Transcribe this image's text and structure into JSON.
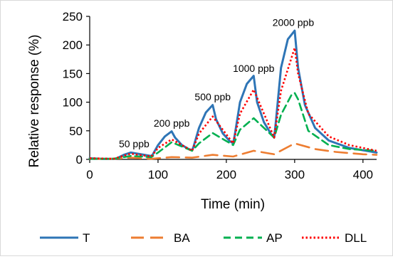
{
  "chart_data": {
    "type": "line",
    "title": "",
    "xlabel": "Time (min)",
    "ylabel": "Relative response (%)",
    "xlim": [
      0,
      420
    ],
    "ylim": [
      0,
      250
    ],
    "xticks": [
      0,
      100,
      200,
      300,
      400
    ],
    "yticks": [
      0,
      50,
      100,
      150,
      200,
      250
    ],
    "grid": false,
    "legend_position": "bottom",
    "annotations": [
      {
        "text": "50 ppb",
        "x": 65,
        "y": 16
      },
      {
        "text": "200 ppb",
        "x": 120,
        "y": 52
      },
      {
        "text": "500 ppb",
        "x": 180,
        "y": 98
      },
      {
        "text": "1000 ppb",
        "x": 240,
        "y": 148
      },
      {
        "text": "2000 ppb",
        "x": 298,
        "y": 228
      }
    ],
    "series": [
      {
        "name": "T",
        "color": "#2e75b6",
        "dash": "solid",
        "points": [
          [
            0,
            2
          ],
          [
            20,
            1
          ],
          [
            35,
            1
          ],
          [
            40,
            2
          ],
          [
            50,
            8
          ],
          [
            60,
            12
          ],
          [
            70,
            10
          ],
          [
            80,
            8
          ],
          [
            90,
            6
          ],
          [
            92,
            8
          ],
          [
            100,
            25
          ],
          [
            110,
            40
          ],
          [
            120,
            49
          ],
          [
            125,
            38
          ],
          [
            135,
            25
          ],
          [
            145,
            18
          ],
          [
            150,
            16
          ],
          [
            152,
            22
          ],
          [
            160,
            55
          ],
          [
            170,
            82
          ],
          [
            180,
            95
          ],
          [
            185,
            70
          ],
          [
            195,
            45
          ],
          [
            205,
            32
          ],
          [
            210,
            28
          ],
          [
            212,
            40
          ],
          [
            220,
            100
          ],
          [
            230,
            132
          ],
          [
            240,
            146
          ],
          [
            245,
            100
          ],
          [
            255,
            65
          ],
          [
            265,
            45
          ],
          [
            270,
            38
          ],
          [
            272,
            60
          ],
          [
            280,
            160
          ],
          [
            290,
            210
          ],
          [
            300,
            225
          ],
          [
            305,
            160
          ],
          [
            315,
            95
          ],
          [
            330,
            55
          ],
          [
            350,
            33
          ],
          [
            380,
            20
          ],
          [
            420,
            12
          ]
        ]
      },
      {
        "name": "BA",
        "color": "#ed7d31",
        "dash": "long",
        "points": [
          [
            0,
            1
          ],
          [
            30,
            1
          ],
          [
            50,
            2
          ],
          [
            60,
            3
          ],
          [
            90,
            1
          ],
          [
            120,
            4
          ],
          [
            150,
            3
          ],
          [
            180,
            8
          ],
          [
            210,
            5
          ],
          [
            240,
            15
          ],
          [
            270,
            9
          ],
          [
            300,
            28
          ],
          [
            330,
            18
          ],
          [
            360,
            13
          ],
          [
            400,
            9
          ],
          [
            420,
            8
          ]
        ]
      },
      {
        "name": "AP",
        "color": "#00b050",
        "dash": "dashed",
        "points": [
          [
            0,
            1
          ],
          [
            35,
            1
          ],
          [
            60,
            6
          ],
          [
            90,
            4
          ],
          [
            100,
            12
          ],
          [
            120,
            30
          ],
          [
            150,
            15
          ],
          [
            160,
            28
          ],
          [
            180,
            46
          ],
          [
            210,
            25
          ],
          [
            220,
            52
          ],
          [
            240,
            72
          ],
          [
            270,
            38
          ],
          [
            280,
            78
          ],
          [
            295,
            112
          ],
          [
            300,
            116
          ],
          [
            305,
            105
          ],
          [
            320,
            50
          ],
          [
            350,
            25
          ],
          [
            380,
            18
          ],
          [
            420,
            15
          ]
        ]
      },
      {
        "name": "DLL",
        "color": "#ff0000",
        "dash": "dotted",
        "points": [
          [
            0,
            2
          ],
          [
            35,
            1
          ],
          [
            60,
            10
          ],
          [
            90,
            5
          ],
          [
            100,
            20
          ],
          [
            120,
            35
          ],
          [
            150,
            15
          ],
          [
            160,
            45
          ],
          [
            180,
            75
          ],
          [
            210,
            28
          ],
          [
            220,
            80
          ],
          [
            240,
            122
          ],
          [
            270,
            38
          ],
          [
            280,
            120
          ],
          [
            300,
            195
          ],
          [
            305,
            150
          ],
          [
            320,
            80
          ],
          [
            350,
            40
          ],
          [
            380,
            25
          ],
          [
            420,
            15
          ]
        ]
      }
    ]
  }
}
